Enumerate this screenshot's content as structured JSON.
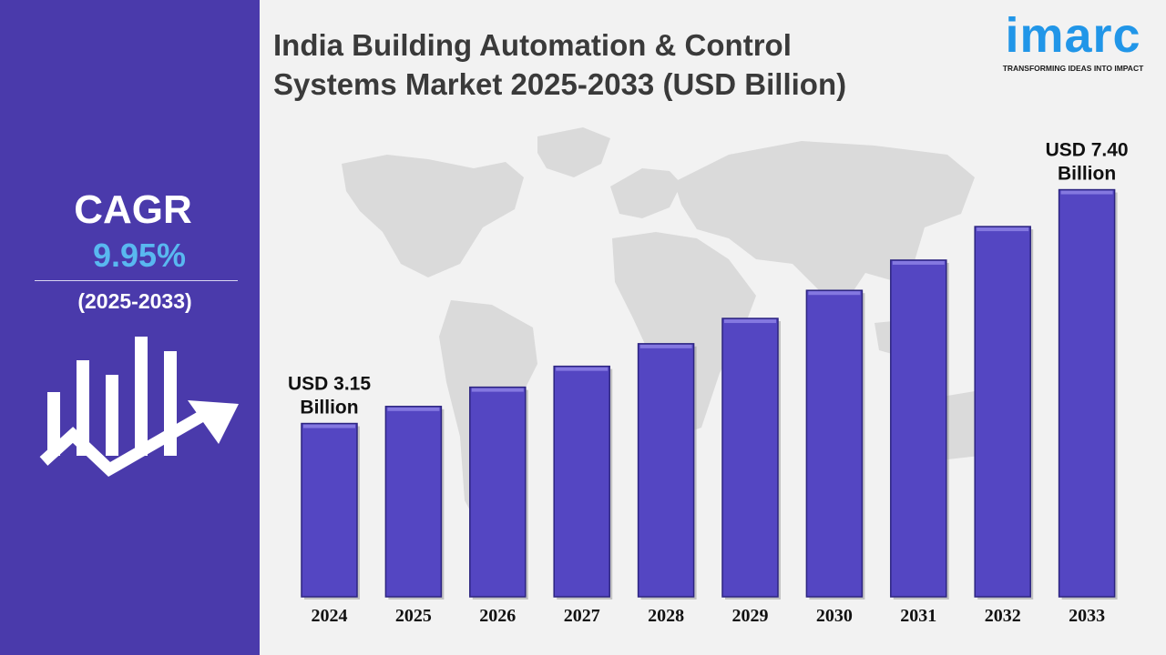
{
  "title_line1": "India Building Automation & Control",
  "title_line2": "Systems Market 2025-2033 (USD Billion)",
  "logo": {
    "word": "imarc",
    "tagline": "TRANSFORMING IDEAS INTO IMPACT",
    "color": "#2196e8"
  },
  "sidebar": {
    "cagr_label": "CAGR",
    "cagr_value": "9.95%",
    "period": "(2025-2033)",
    "background": "#4a3aab",
    "value_color": "#59b8f0",
    "icon": "growth-chart-arrow-icon"
  },
  "chart_data": {
    "type": "bar",
    "categories": [
      "2024",
      "2025",
      "2026",
      "2027",
      "2028",
      "2029",
      "2030",
      "2031",
      "2032",
      "2033"
    ],
    "values": [
      3.15,
      3.46,
      3.81,
      4.19,
      4.6,
      5.06,
      5.57,
      6.12,
      6.73,
      7.4
    ],
    "data_labels": [
      {
        "index": 0,
        "line1": "USD 3.15",
        "line2": "Billion"
      },
      {
        "index": 9,
        "line1": "USD 7.40",
        "line2": "Billion"
      }
    ],
    "title": "India Building Automation & Control Systems Market 2025-2033 (USD Billion)",
    "xlabel": "",
    "ylabel": "",
    "ylim": [
      0,
      8.6
    ],
    "grid": false,
    "legend": "none",
    "bar_color": "#5446c2"
  }
}
